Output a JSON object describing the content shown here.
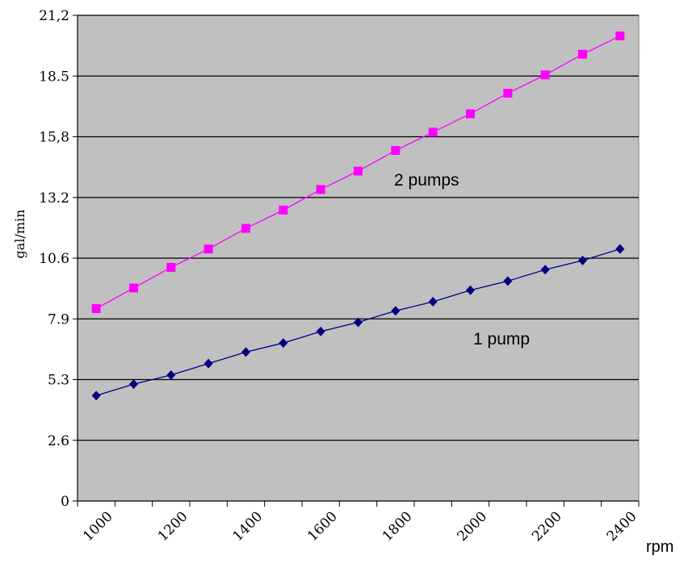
{
  "chart_data": {
    "type": "line",
    "xlabel": "rpm",
    "ylabel": "gal/min",
    "x_tick_labels": [
      "1000",
      "1200",
      "1400",
      "1600",
      "1800",
      "2000",
      "2200",
      "2400"
    ],
    "y_tick_labels": [
      "0",
      "2.6",
      "5.3",
      "7.9",
      "10.6",
      "13.2",
      "15,8",
      "18.5",
      "21,2"
    ],
    "ylim": [
      0,
      21.2
    ],
    "grid": "horizontal",
    "plot_background": "#c0c0c0",
    "series": [
      {
        "name": "2 pumps",
        "color": "#ff00ff",
        "marker": "square",
        "x": [
          1000,
          1100,
          1200,
          1300,
          1400,
          1500,
          1600,
          1700,
          1800,
          1900,
          2000,
          2100,
          2200,
          2300,
          2400
        ],
        "values": [
          8.4,
          9.3,
          10.2,
          11.0,
          11.9,
          12.7,
          13.6,
          14.4,
          15.3,
          16.1,
          16.9,
          17.8,
          18.6,
          19.5,
          20.3
        ]
      },
      {
        "name": "1 pump",
        "color": "#000080",
        "marker": "diamond",
        "x": [
          1000,
          1100,
          1200,
          1300,
          1400,
          1500,
          1600,
          1700,
          1800,
          1900,
          2000,
          2100,
          2200,
          2300,
          2400
        ],
        "values": [
          4.6,
          5.1,
          5.5,
          6.0,
          6.5,
          6.9,
          7.4,
          7.8,
          8.3,
          8.7,
          9.2,
          9.6,
          10.1,
          10.5,
          11.0
        ]
      }
    ]
  }
}
